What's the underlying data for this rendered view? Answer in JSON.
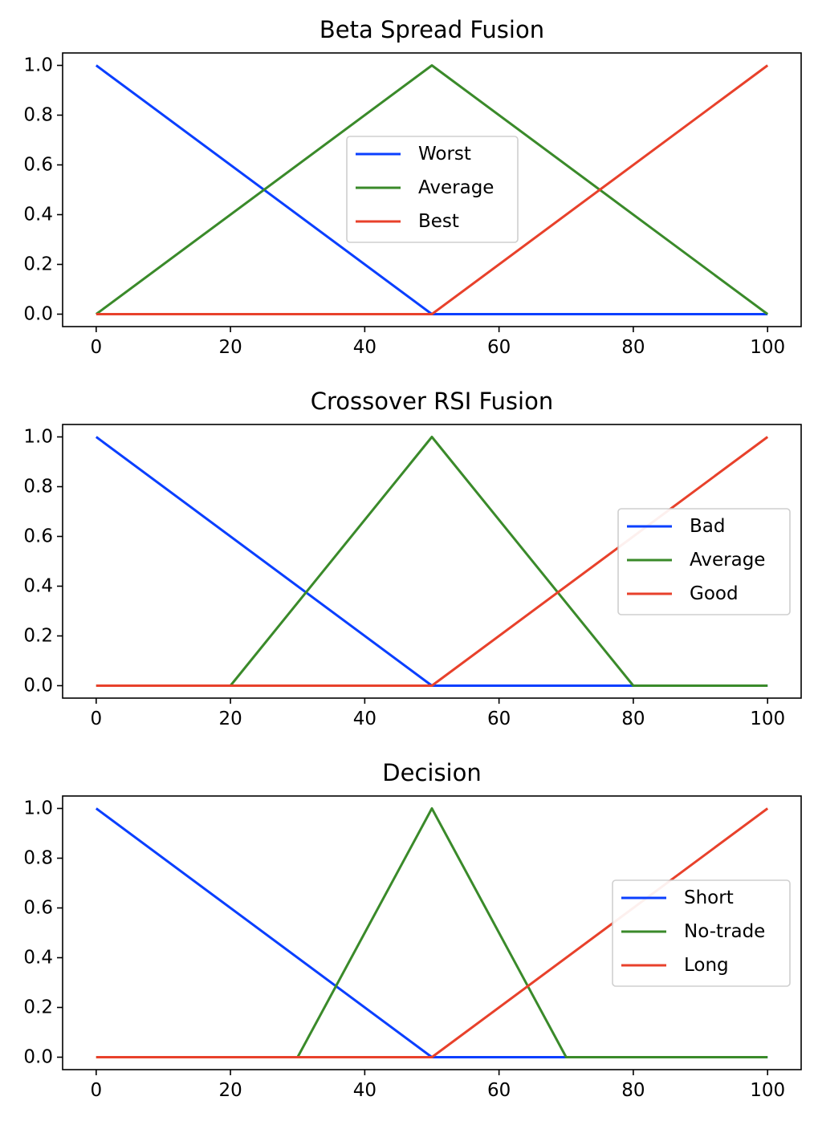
{
  "chart_data": [
    {
      "type": "line",
      "title": "Beta Spread Fusion",
      "xlabel": "",
      "ylabel": "",
      "xlim": [
        -5,
        105
      ],
      "ylim": [
        -0.05,
        1.05
      ],
      "xticks": [
        "0",
        "20",
        "40",
        "60",
        "80",
        "100"
      ],
      "yticks": [
        "0.0",
        "0.2",
        "0.4",
        "0.6",
        "0.8",
        "1.0"
      ],
      "legend_position": "center",
      "grid": false,
      "series": [
        {
          "name": "Worst",
          "color": "#0a3fff",
          "points": [
            [
              0,
              1
            ],
            [
              50,
              0
            ],
            [
              100,
              0
            ]
          ]
        },
        {
          "name": "Average",
          "color": "#3a8a2a",
          "points": [
            [
              0,
              0
            ],
            [
              50,
              1
            ],
            [
              100,
              0
            ]
          ]
        },
        {
          "name": "Best",
          "color": "#e8412b",
          "points": [
            [
              0,
              0
            ],
            [
              50,
              0
            ],
            [
              100,
              1
            ]
          ]
        }
      ]
    },
    {
      "type": "line",
      "title": "Crossover RSI Fusion",
      "xlabel": "",
      "ylabel": "",
      "xlim": [
        -5,
        105
      ],
      "ylim": [
        -0.05,
        1.05
      ],
      "xticks": [
        "0",
        "20",
        "40",
        "60",
        "80",
        "100"
      ],
      "yticks": [
        "0.0",
        "0.2",
        "0.4",
        "0.6",
        "0.8",
        "1.0"
      ],
      "legend_position": "center right",
      "grid": false,
      "series": [
        {
          "name": "Bad",
          "color": "#0a3fff",
          "points": [
            [
              0,
              1
            ],
            [
              50,
              0
            ],
            [
              100,
              0
            ]
          ]
        },
        {
          "name": "Average",
          "color": "#3a8a2a",
          "points": [
            [
              0,
              0
            ],
            [
              20,
              0
            ],
            [
              50,
              1
            ],
            [
              80,
              0
            ],
            [
              100,
              0
            ]
          ]
        },
        {
          "name": "Good",
          "color": "#e8412b",
          "points": [
            [
              0,
              0
            ],
            [
              50,
              0
            ],
            [
              100,
              1
            ]
          ]
        }
      ]
    },
    {
      "type": "line",
      "title": "Decision",
      "xlabel": "",
      "ylabel": "",
      "xlim": [
        -5,
        105
      ],
      "ylim": [
        -0.05,
        1.05
      ],
      "xticks": [
        "0",
        "20",
        "40",
        "60",
        "80",
        "100"
      ],
      "yticks": [
        "0.0",
        "0.2",
        "0.4",
        "0.6",
        "0.8",
        "1.0"
      ],
      "legend_position": "center right",
      "grid": false,
      "series": [
        {
          "name": "Short",
          "color": "#0a3fff",
          "points": [
            [
              0,
              1
            ],
            [
              50,
              0
            ],
            [
              100,
              0
            ]
          ]
        },
        {
          "name": "No-trade",
          "color": "#3a8a2a",
          "points": [
            [
              0,
              0
            ],
            [
              30,
              0
            ],
            [
              50,
              1
            ],
            [
              70,
              0
            ],
            [
              100,
              0
            ]
          ]
        },
        {
          "name": "Long",
          "color": "#e8412b",
          "points": [
            [
              0,
              0
            ],
            [
              50,
              0
            ],
            [
              100,
              1
            ]
          ]
        }
      ]
    }
  ]
}
